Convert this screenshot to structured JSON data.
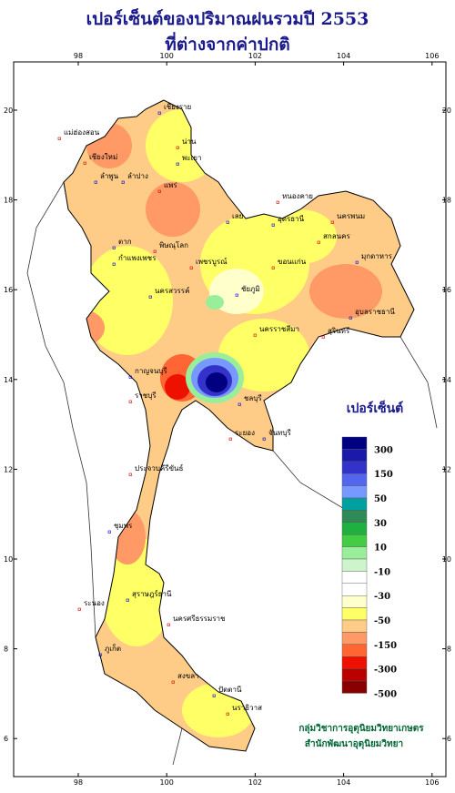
{
  "header": {
    "title_line1": "เปอร์เซ็นต์ของปริมาณฝนรวมปี 2553",
    "title_line2": "ที่ต่างจากค่าปกติ"
  },
  "map": {
    "xticks": [
      98,
      100,
      102,
      104,
      106
    ],
    "yticks": [
      20,
      18,
      16,
      14,
      12,
      10,
      8,
      6
    ],
    "places": [
      "เชียงราย",
      "แม่ฮ่องสอน",
      "พะเยา",
      "เชียงใหม่",
      "ลำพูน",
      "น่าน",
      "ลำปาง",
      "แพร่",
      "ตาก",
      "พิษณุโลก",
      "กำแพงเพชร",
      "เพชรบูรณ์",
      "นครสวรรค์",
      "หนองคาย",
      "อุดรธานี",
      "นครพนม",
      "เลย",
      "สกลนคร",
      "มุกดาหาร",
      "ขอนแก่น",
      "ชัยภูมิ",
      "นครราชสีมา",
      "อุบลราชธานี",
      "สุรินทร์",
      "กาญจนบุรี",
      "ราชบุรี",
      "ชลบุรี",
      "ระยอง",
      "จันทบุรี",
      "ประจวบคีรีขันธ์",
      "ชุมพร",
      "ระนอง",
      "สุราษฎร์ธานี",
      "นครศรีธรรมราช",
      "ภูเก็ต",
      "สงขลา",
      "ปัตตานี",
      "นราธิวาส"
    ]
  },
  "legend": {
    "title": "เปอร์เซ็นต์",
    "colors": [
      "#000080",
      "#1a1aa8",
      "#3333cc",
      "#5566ee",
      "#7799ff",
      "#00a0a0",
      "#2e8b57",
      "#20b040",
      "#44cc44",
      "#99ee99",
      "#ccf5cc",
      "#ffffff",
      "#ffffff",
      "#ffffcc",
      "#ffff66",
      "#ffcc88",
      "#ff9966",
      "#ff6633",
      "#ee1100",
      "#bb0000",
      "#880000"
    ],
    "labels": [
      300,
      150,
      50,
      30,
      10,
      -10,
      -30,
      -50,
      -150,
      -300,
      -500
    ]
  },
  "credits": {
    "line1": "กลุ่มวิชาการอุตุนิยมวิทยาเกษตร",
    "line2": "สำนักพัฒนาอุตุนิยมวิทยา"
  }
}
